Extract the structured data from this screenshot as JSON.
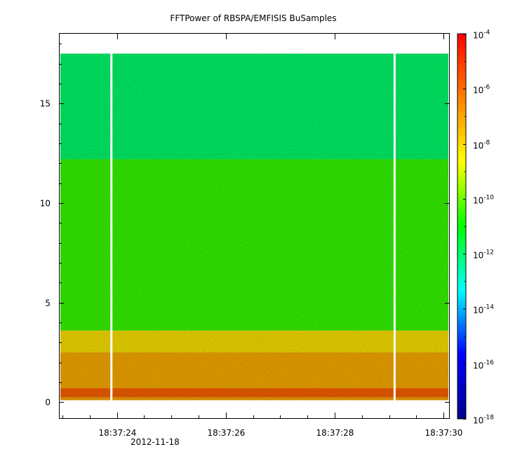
{
  "chart_data": {
    "type": "heatmap",
    "title": "FFTPower of RBSPA/EMFISIS  BuSamples",
    "xlabel": "",
    "ylabel": "",
    "x_tick_labels": [
      "18:37:24",
      "18:37:26",
      "18:37:28",
      "18:37:30"
    ],
    "x_date_label": "2012-11-18",
    "x_range": [
      "18:37:22.95",
      "18:37:30.1"
    ],
    "y_ticks": [
      0,
      5,
      10,
      15
    ],
    "ylim": [
      -0.8,
      18.5
    ],
    "data_y_extent": [
      0.1,
      17.5
    ],
    "colorbar": {
      "scale": "log",
      "range": [
        1e-18,
        0.0001
      ],
      "tick_bases": [
        "10",
        "10",
        "10",
        "10",
        "10",
        "10",
        "10",
        "10"
      ],
      "tick_exponents": [
        "-4",
        "-6",
        "-8",
        "-10",
        "-12",
        "-14",
        "-16",
        "-18"
      ],
      "colormap": [
        "#00008b",
        "#0000ff",
        "#00ffff",
        "#00ff00",
        "#ffff00",
        "#ff8000",
        "#ff0000"
      ]
    },
    "gaps_time": [
      "18:37:23.9",
      "18:37:29.1"
    ],
    "bands": [
      {
        "y_from": 0.0,
        "y_to": 0.25,
        "log_power": -7.0
      },
      {
        "y_from": 0.25,
        "y_to": 0.7,
        "log_power": -5.8
      },
      {
        "y_from": 0.7,
        "y_to": 2.5,
        "log_power": -7.2
      },
      {
        "y_from": 2.5,
        "y_to": 3.6,
        "log_power": -8.2
      },
      {
        "y_from": 3.6,
        "y_to": 12.2,
        "log_power": -10.5
      },
      {
        "y_from": 12.2,
        "y_to": 17.5,
        "log_power": -12.0
      }
    ],
    "grid": false,
    "legend": "none"
  }
}
